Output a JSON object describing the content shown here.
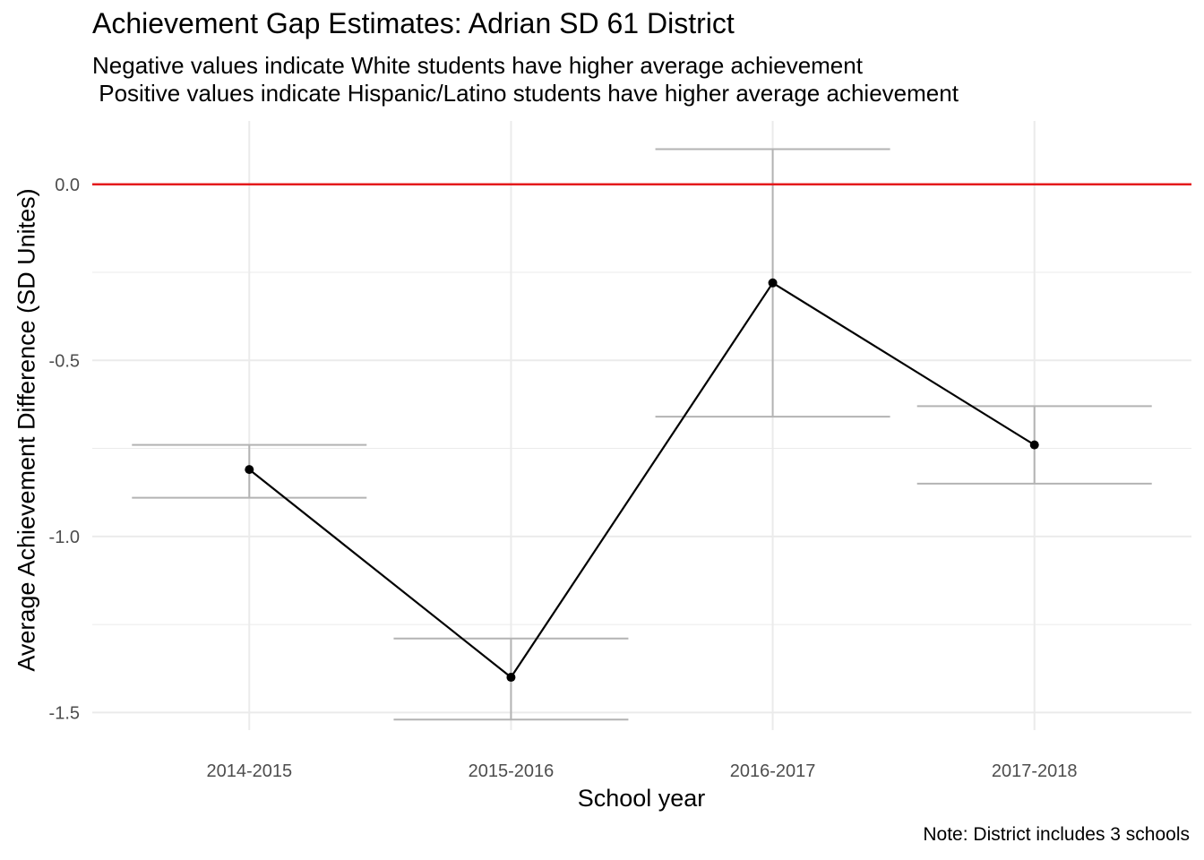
{
  "chart_data": {
    "type": "line",
    "title": "Achievement Gap Estimates: Adrian SD 61 District",
    "subtitle_lines": [
      "Negative values indicate White students have higher average achievement",
      " Positive values indicate Hispanic/Latino students have higher average achievement"
    ],
    "xlabel": "School year",
    "ylabel": "Average Achievement Difference (SD Unites)",
    "caption": "Note: District includes 3 schools",
    "categories": [
      "2014-2015",
      "2015-2016",
      "2016-2017",
      "2017-2018"
    ],
    "series": [
      {
        "values": [
          -0.81,
          -1.4,
          -0.28,
          -0.74
        ],
        "lower": [
          -0.89,
          -1.52,
          -0.66,
          -0.85
        ],
        "upper": [
          -0.74,
          -1.29,
          0.1,
          -0.63
        ]
      }
    ],
    "y_ticks": [
      0.0,
      -0.5,
      -1.0,
      -1.5
    ],
    "y_tick_labels": [
      "0.0",
      "-0.5",
      "-1.0",
      "-1.5"
    ],
    "ylim": [
      -1.55,
      0.18
    ],
    "reference_line": {
      "y": 0.0,
      "color": "#e41a1c"
    },
    "colors": {
      "line": "#000000",
      "errorbar": "#b3b3b3",
      "grid": "#ebebeb"
    },
    "grid": true,
    "legend": "none"
  }
}
